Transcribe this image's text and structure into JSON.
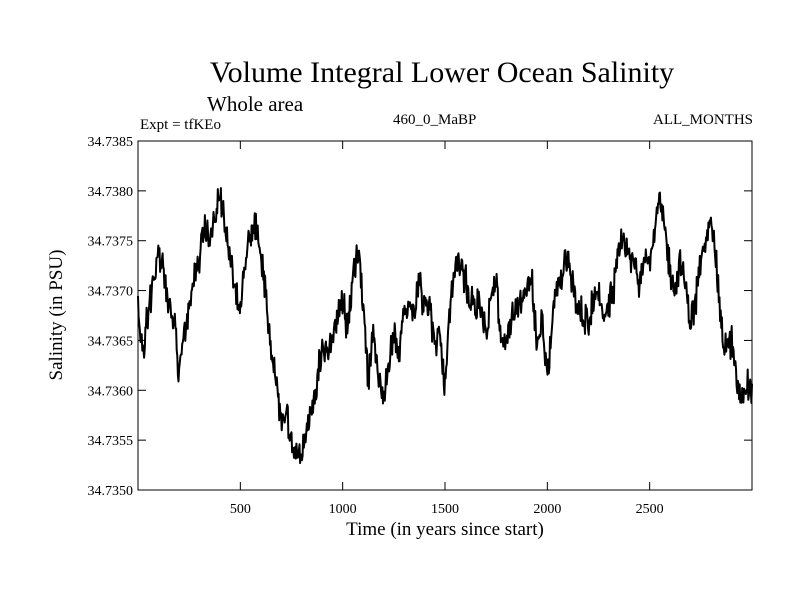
{
  "chart_data": {
    "type": "line",
    "title": "Volume Integral Lower Ocean Salinity",
    "subtitle": "Whole area",
    "expt_label": "Expt = tfKEo",
    "run_label": "460_0_MaBP",
    "months_label": "ALL_MONTHS",
    "xlabel": "Time (in years since start)",
    "ylabel": "Salinity (in PSU)",
    "xlim": [
      0,
      3000
    ],
    "ylim": [
      34.735,
      34.7385
    ],
    "x_ticks": [
      500,
      1000,
      1500,
      2000,
      2500
    ],
    "x_tick_labels": [
      "500",
      "1000",
      "1500",
      "2000",
      "2500"
    ],
    "y_ticks": [
      34.735,
      34.7355,
      34.736,
      34.7365,
      34.737,
      34.7375,
      34.738,
      34.7385
    ],
    "y_tick_labels": [
      "34.7350",
      "34.7355",
      "34.7360",
      "34.7365",
      "34.7370",
      "34.7375",
      "34.7380",
      "34.7385"
    ],
    "grid": false,
    "line_color": "#000000",
    "series": [
      {
        "x": [
          0,
          25,
          50,
          75,
          100,
          125,
          150,
          175,
          200,
          225,
          250,
          275,
          300,
          325,
          350,
          375,
          400,
          425,
          450,
          475,
          500,
          525,
          550,
          575,
          600,
          625,
          650,
          675,
          700,
          725,
          750,
          775,
          800,
          825,
          850,
          875,
          900,
          925,
          950,
          975,
          1000,
          1025,
          1050,
          1075,
          1100,
          1125,
          1150,
          1175,
          1200,
          1225,
          1250,
          1275,
          1300,
          1325,
          1350,
          1375,
          1400,
          1425,
          1450,
          1475,
          1500,
          1525,
          1550,
          1575,
          1600,
          1625,
          1650,
          1675,
          1700,
          1725,
          1750,
          1775,
          1800,
          1825,
          1850,
          1875,
          1900,
          1925,
          1950,
          1975,
          2000,
          2025,
          2050,
          2075,
          2100,
          2125,
          2150,
          2175,
          2200,
          2225,
          2250,
          2275,
          2300,
          2325,
          2350,
          2375,
          2400,
          2425,
          2450,
          2475,
          2500,
          2525,
          2550,
          2575,
          2600,
          2625,
          2650,
          2675,
          2700,
          2725,
          2750,
          2775,
          2800,
          2825,
          2850,
          2875,
          2900,
          2925,
          2950,
          2975,
          3000
        ],
        "values": [
          34.7368,
          34.7364,
          34.7368,
          34.7371,
          34.7374,
          34.7372,
          34.7368,
          34.7367,
          34.7362,
          34.7366,
          34.7368,
          34.7372,
          34.7373,
          34.7376,
          34.7375,
          34.7377,
          34.738,
          34.7377,
          34.7374,
          34.737,
          34.7368,
          34.7373,
          34.7375,
          34.7377,
          34.7373,
          34.737,
          34.7364,
          34.7361,
          34.7357,
          34.7358,
          34.7355,
          34.7354,
          34.7353,
          34.7356,
          34.7358,
          34.7361,
          34.7364,
          34.7363,
          34.7365,
          34.7367,
          34.7369,
          34.7366,
          34.7372,
          34.7374,
          34.7369,
          34.7361,
          34.7366,
          34.7362,
          34.7359,
          34.7362,
          34.7366,
          34.7363,
          34.7368,
          34.7369,
          34.7368,
          34.7371,
          34.7368,
          34.7369,
          34.7364,
          34.7366,
          34.736,
          34.7369,
          34.7372,
          34.7373,
          34.7371,
          34.7369,
          34.7369,
          34.7368,
          34.7366,
          34.7369,
          34.7371,
          34.7365,
          34.7364,
          34.7367,
          34.7368,
          34.7369,
          34.737,
          34.7371,
          34.7364,
          34.7367,
          34.7361,
          34.7368,
          34.737,
          34.7372,
          34.7374,
          34.737,
          34.7368,
          34.7368,
          34.7367,
          34.7369,
          34.737,
          34.7367,
          34.7369,
          34.737,
          34.7374,
          34.7375,
          34.7373,
          34.7373,
          34.7371,
          34.7374,
          34.7373,
          34.7376,
          34.7379,
          34.7376,
          34.7372,
          34.737,
          34.7373,
          34.737,
          34.7367,
          34.7369,
          34.7373,
          34.7375,
          34.7378,
          34.7373,
          34.7366,
          34.7364,
          34.7365,
          34.7361,
          34.7359,
          34.7361,
          34.736
        ]
      }
    ]
  }
}
